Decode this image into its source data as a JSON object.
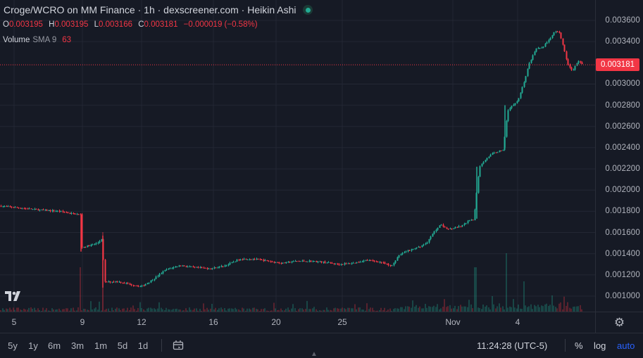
{
  "legend": {
    "title": "Croge/WCRO on MM Finance · 1h · dexscreener.com · Heikin Ashi",
    "ohlc": {
      "o_label": "O",
      "o_value": "0.003195",
      "h_label": "H",
      "h_value": "0.003195",
      "l_label": "L",
      "l_value": "0.003166",
      "c_label": "C",
      "c_value": "0.003181",
      "change": "−0.000019 (−0.58%)"
    },
    "volume": {
      "label": "Volume",
      "indicator": "SMA 9",
      "value": "63"
    }
  },
  "colors": {
    "up": "#22ab94",
    "down": "#f23645",
    "background": "#161a25",
    "grid": "#232734",
    "accent": "#2962ff"
  },
  "chart_data": {
    "type": "candlestick",
    "style": "Heikin Ashi",
    "timeframe": "1h",
    "last_price": 0.003181,
    "last_price_label": "0.003181",
    "y_ticks": [
      "0.001000",
      "0.001200",
      "0.001400",
      "0.001600",
      "0.001800",
      "0.002000",
      "0.002200",
      "0.002400",
      "0.002600",
      "0.002800",
      "0.003000",
      "0.003400",
      "0.003600"
    ],
    "x_ticks": [
      "5",
      "9",
      "12",
      "16",
      "20",
      "25",
      "Nov",
      "4"
    ],
    "grid": true
  },
  "icons": {
    "settings": "gear-icon",
    "compare": "compare-icon",
    "logo": "tradingview-logo"
  },
  "bottom_bar": {
    "ranges": [
      "5y",
      "1y",
      "6m",
      "3m",
      "1m",
      "5d",
      "1d"
    ],
    "clock": "11:24:28 (UTC-5)",
    "percent": "%",
    "log": "log",
    "auto": "auto"
  }
}
